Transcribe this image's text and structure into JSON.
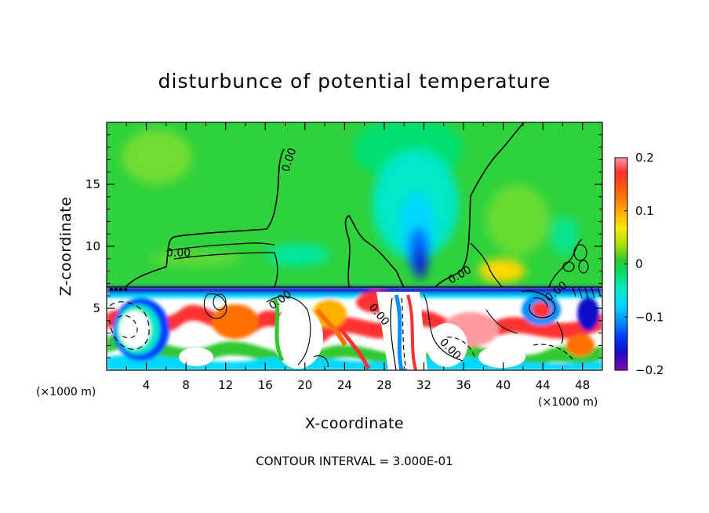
{
  "chart_data": {
    "type": "heatmap",
    "title": "disturbunce of potential temperature",
    "xlabel": "X-coordinate",
    "ylabel": "Z-coordinate",
    "x_unit": "(×1000 m)",
    "y_unit": "(×1000 m)",
    "xlim": [
      0,
      50
    ],
    "ylim": [
      0,
      20
    ],
    "x_ticks": [
      4,
      8,
      12,
      16,
      20,
      24,
      28,
      32,
      36,
      40,
      44,
      48
    ],
    "y_ticks": [
      5,
      10,
      15
    ],
    "colorbar": {
      "range": [
        -0.2,
        0.2
      ],
      "tick_values": [
        0.2,
        0.1,
        0,
        -0.1,
        -0.2
      ],
      "tick_labels": [
        "0.2",
        "0.1",
        "0",
        "−0.1",
        "−0.2"
      ],
      "colors": [
        "#ff9aa0",
        "#ff2020",
        "#ff6a00",
        "#ffa800",
        "#ffe000",
        "#a0e000",
        "#30c830",
        "#00e070",
        "#00e8c0",
        "#00d8ff",
        "#0090ff",
        "#0050ff",
        "#1010d0",
        "#5000b0",
        "#8800aa"
      ]
    },
    "contour_labels": [
      "0.00",
      "0.00",
      "0.00",
      "0.00",
      "0.00",
      "0.00",
      "0.00"
    ],
    "annotation": "CONTOUR INTERVAL = 3.000E-01"
  }
}
